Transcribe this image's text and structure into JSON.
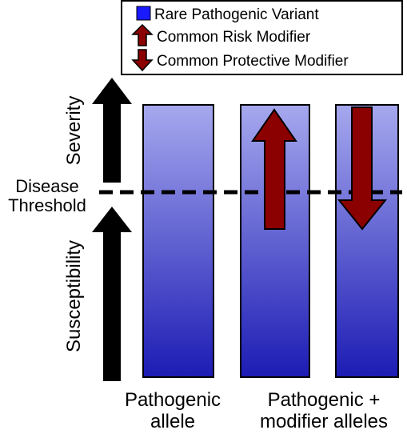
{
  "legend": {
    "items": [
      {
        "label": "Rare Pathogenic Variant",
        "icon": "blue-square-icon",
        "color": "#1a1aff"
      },
      {
        "label": "Common Risk Modifier",
        "icon": "up-arrow-icon",
        "color": "#8b0000"
      },
      {
        "label": "Common Protective Modifier",
        "icon": "down-arrow-icon",
        "color": "#8b0000"
      }
    ]
  },
  "axis": {
    "upper_label": "Severity",
    "lower_label": "Susceptibility",
    "threshold_line1": "Disease",
    "threshold_line2": "Threshold"
  },
  "groups": [
    {
      "line1": "Pathogenic",
      "line2": "allele"
    },
    {
      "line1": "Pathogenic +",
      "line2": "modifier alleles"
    }
  ],
  "colors": {
    "bar_top": "#a6a8ee",
    "bar_bottom": "#1c1cb4",
    "modifier": "#8b0000"
  }
}
